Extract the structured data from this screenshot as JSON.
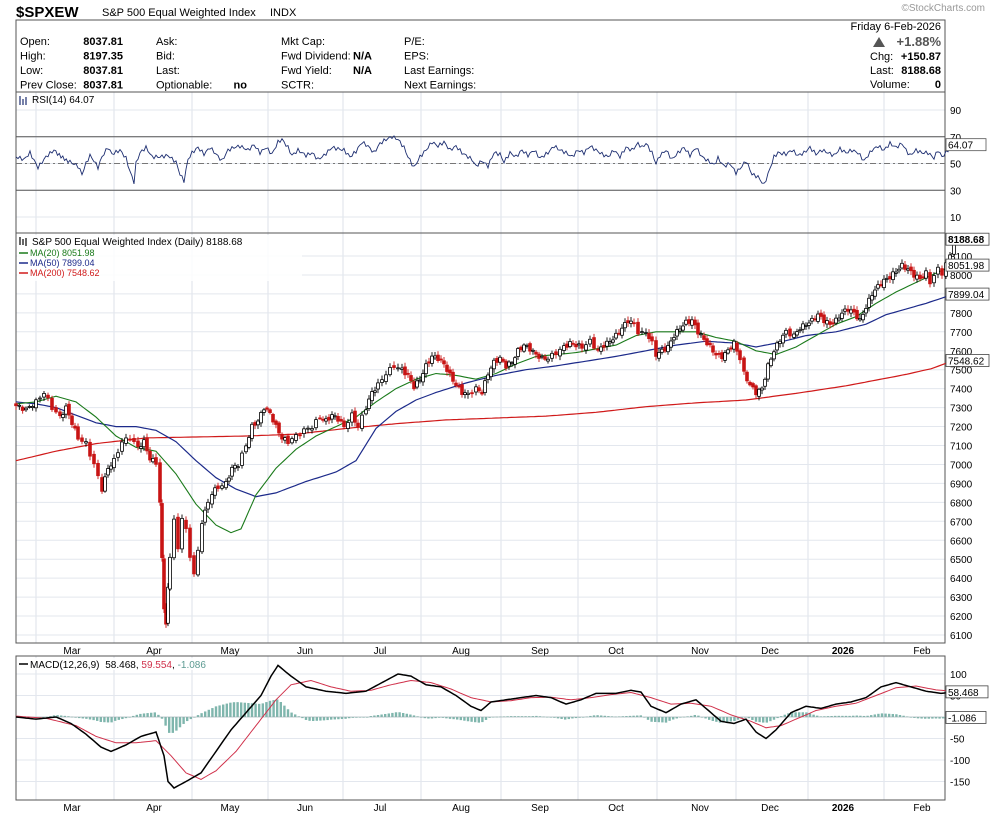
{
  "header": {
    "symbol": "$SPXEW",
    "name": "S&P 500 Equal Weighted Index",
    "exchange": "INDX",
    "date": "Friday  6-Feb-2026",
    "change_pct": "+1.88%",
    "change_label": "Chg:",
    "change_value": "+150.87",
    "last_label": "Last:",
    "last_value": "8188.68",
    "volume_label": "Volume:",
    "volume_value": "0",
    "watermark": "©StockCharts.com"
  },
  "quote": {
    "col1": [
      {
        "label": "Open:",
        "value": "8037.81"
      },
      {
        "label": "High:",
        "value": "8197.35"
      },
      {
        "label": "Low:",
        "value": "8037.81"
      },
      {
        "label": "Prev Close:",
        "value": "8037.81"
      }
    ],
    "col2": [
      {
        "label": "Ask:",
        "value": ""
      },
      {
        "label": "Bid:",
        "value": ""
      },
      {
        "label": "Last:",
        "value": ""
      },
      {
        "label": "Optionable:",
        "value": "no"
      }
    ],
    "col3": [
      {
        "label": "Mkt Cap:",
        "value": ""
      },
      {
        "label": "Fwd Dividend:",
        "value": "N/A"
      },
      {
        "label": "Fwd Yield:",
        "value": "N/A"
      },
      {
        "label": "SCTR:",
        "value": ""
      }
    ],
    "col4": [
      {
        "label": "P/E:",
        "value": ""
      },
      {
        "label": "EPS:",
        "value": ""
      },
      {
        "label": "Last Earnings:",
        "value": ""
      },
      {
        "label": "Next Earnings:",
        "value": ""
      }
    ]
  },
  "rsi": {
    "legend": "RSI(14) 64.07",
    "current_label": "64.07",
    "current": 64.07,
    "ticks": [
      "90",
      "70",
      "50",
      "30",
      "10"
    ],
    "overbought": 70,
    "oversold": 30,
    "color": "#1c2d70",
    "anchors": [
      [
        0,
        55
      ],
      [
        8,
        53
      ],
      [
        14,
        58
      ],
      [
        22,
        47
      ],
      [
        30,
        55
      ],
      [
        38,
        60
      ],
      [
        45,
        55
      ],
      [
        52,
        52
      ],
      [
        62,
        48
      ],
      [
        66,
        42
      ],
      [
        70,
        50
      ],
      [
        74,
        56
      ],
      [
        78,
        52
      ],
      [
        82,
        47
      ],
      [
        86,
        55
      ],
      [
        92,
        62
      ],
      [
        96,
        57
      ],
      [
        104,
        60
      ],
      [
        110,
        54
      ],
      [
        114,
        44
      ],
      [
        118,
        36
      ],
      [
        120,
        50
      ],
      [
        124,
        58
      ],
      [
        130,
        62
      ],
      [
        136,
        55
      ],
      [
        144,
        55
      ],
      [
        152,
        56
      ],
      [
        160,
        51
      ],
      [
        164,
        42
      ],
      [
        168,
        37
      ],
      [
        172,
        53
      ],
      [
        176,
        58
      ],
      [
        182,
        62
      ],
      [
        188,
        57
      ],
      [
        194,
        62
      ],
      [
        200,
        57
      ],
      [
        206,
        52
      ],
      [
        212,
        60
      ],
      [
        218,
        62
      ],
      [
        224,
        63
      ],
      [
        232,
        60
      ],
      [
        238,
        64
      ],
      [
        244,
        58
      ],
      [
        250,
        62
      ],
      [
        256,
        57
      ],
      [
        262,
        66
      ],
      [
        266,
        68
      ],
      [
        272,
        62
      ],
      [
        276,
        56
      ],
      [
        282,
        60
      ],
      [
        290,
        56
      ],
      [
        296,
        58
      ],
      [
        302,
        53
      ],
      [
        308,
        56
      ],
      [
        316,
        62
      ],
      [
        322,
        61
      ],
      [
        328,
        60
      ],
      [
        334,
        55
      ],
      [
        340,
        59
      ],
      [
        346,
        66
      ],
      [
        352,
        63
      ],
      [
        358,
        58
      ],
      [
        364,
        65
      ],
      [
        370,
        68
      ],
      [
        376,
        70
      ],
      [
        382,
        68
      ],
      [
        388,
        62
      ],
      [
        392,
        55
      ],
      [
        398,
        47
      ],
      [
        404,
        55
      ],
      [
        410,
        60
      ],
      [
        416,
        66
      ],
      [
        422,
        63
      ],
      [
        428,
        66
      ],
      [
        434,
        60
      ],
      [
        440,
        63
      ],
      [
        446,
        58
      ],
      [
        452,
        55
      ],
      [
        456,
        53
      ],
      [
        460,
        48
      ],
      [
        466,
        52
      ],
      [
        472,
        48
      ],
      [
        478,
        58
      ],
      [
        484,
        57
      ],
      [
        488,
        51
      ],
      [
        494,
        58
      ],
      [
        500,
        55
      ],
      [
        506,
        60
      ],
      [
        512,
        56
      ],
      [
        518,
        60
      ],
      [
        524,
        54
      ],
      [
        532,
        58
      ],
      [
        538,
        63
      ],
      [
        544,
        60
      ],
      [
        550,
        58
      ],
      [
        556,
        55
      ],
      [
        562,
        60
      ],
      [
        568,
        58
      ],
      [
        574,
        63
      ],
      [
        580,
        60
      ],
      [
        586,
        57
      ],
      [
        592,
        55
      ],
      [
        598,
        60
      ],
      [
        604,
        55
      ],
      [
        610,
        62
      ],
      [
        616,
        60
      ],
      [
        622,
        65
      ],
      [
        626,
        62
      ],
      [
        630,
        65
      ],
      [
        636,
        58
      ],
      [
        640,
        50
      ],
      [
        644,
        56
      ],
      [
        650,
        60
      ],
      [
        656,
        53
      ],
      [
        662,
        58
      ],
      [
        668,
        62
      ],
      [
        674,
        56
      ],
      [
        680,
        62
      ],
      [
        686,
        55
      ],
      [
        692,
        52
      ],
      [
        698,
        49
      ],
      [
        702,
        54
      ],
      [
        708,
        48
      ],
      [
        714,
        50
      ],
      [
        720,
        43
      ],
      [
        726,
        48
      ],
      [
        730,
        52
      ],
      [
        736,
        42
      ],
      [
        742,
        40
      ],
      [
        748,
        34
      ],
      [
        752,
        42
      ],
      [
        758,
        55
      ],
      [
        762,
        58
      ],
      [
        770,
        57
      ],
      [
        776,
        60
      ],
      [
        782,
        56
      ],
      [
        788,
        58
      ],
      [
        794,
        62
      ],
      [
        800,
        57
      ],
      [
        806,
        60
      ],
      [
        812,
        58
      ],
      [
        818,
        56
      ],
      [
        824,
        61
      ],
      [
        830,
        58
      ],
      [
        836,
        60
      ],
      [
        842,
        58
      ],
      [
        848,
        52
      ],
      [
        852,
        56
      ],
      [
        856,
        60
      ],
      [
        862,
        63
      ],
      [
        868,
        60
      ],
      [
        874,
        65
      ],
      [
        880,
        62
      ],
      [
        886,
        65
      ],
      [
        890,
        60
      ],
      [
        894,
        56
      ],
      [
        900,
        60
      ],
      [
        906,
        58
      ],
      [
        912,
        58
      ],
      [
        918,
        54
      ],
      [
        922,
        60
      ],
      [
        926,
        55
      ],
      [
        930,
        58
      ],
      [
        934,
        62
      ],
      [
        938,
        64.07
      ]
    ]
  },
  "price": {
    "legend": "S&P 500 Equal Weighted Index (Daily) 8188.68",
    "ma20_label": "MA(20) 8051.98",
    "ma50_label": "MA(50) 7899.04",
    "ma200_label": "MA(200) 7548.62",
    "last_tag": "8188.68",
    "ma20_tag": "8051.98",
    "ma50_tag": "7899.04",
    "ma200_tag": "7548.62",
    "ticks": [
      "8100",
      "8000",
      "7900",
      "7800",
      "7700",
      "7600",
      "7500",
      "7400",
      "7300",
      "7200",
      "7100",
      "7000",
      "6900",
      "6800",
      "6700",
      "6600",
      "6500",
      "6400",
      "6300",
      "6200",
      "6100"
    ],
    "colors": {
      "ma20": "#1a7a1a",
      "ma50": "#1c2a8a",
      "ma200": "#d01a1a",
      "up": "#000000",
      "down": "#c81414"
    }
  },
  "macd": {
    "legend_prefix": "MACD(12,26,9)",
    "macd_value": "58.468",
    "signal_value": "59.554",
    "hist_value": "-1.086",
    "macd_tag": "58.468",
    "hist_tag": "-1.086",
    "ticks": [
      "100",
      "50",
      "0",
      "-50",
      "-100",
      "-150"
    ],
    "colors": {
      "macd": "#000000",
      "signal": "#d0304a",
      "hist": "#7fb6ad"
    }
  },
  "axis": {
    "months": [
      "Mar",
      "Apr",
      "May",
      "Jun",
      "Jul",
      "Aug",
      "Sep",
      "Oct",
      "Nov",
      "Dec",
      "2026",
      "Feb"
    ]
  },
  "chart_data": {
    "type": "line",
    "title": "$SPXEW S&P 500 Equal Weighted Index INDX",
    "x_range": [
      "Feb 2025",
      "6-Feb-2026"
    ],
    "y_range_price": [
      6100,
      8200
    ],
    "series": [
      {
        "name": "S&P 500 Equal Weighted Index (Daily)",
        "points": [
          [
            "Feb",
            7310
          ],
          [
            "Mar",
            7380
          ],
          [
            "mid-Mar",
            6830
          ],
          [
            "Apr",
            7150
          ],
          [
            "Apr (low)",
            6100
          ],
          [
            "May",
            6910
          ],
          [
            "Jun",
            7200
          ],
          [
            "Jul",
            7480
          ],
          [
            "Aug",
            7380
          ],
          [
            "Sep",
            7640
          ],
          [
            "Oct",
            7790
          ],
          [
            "Nov",
            7560
          ],
          [
            "late Nov",
            7350
          ],
          [
            "Dec",
            7700
          ],
          [
            "Jan",
            7900
          ],
          [
            "2026",
            8050
          ],
          [
            "Feb",
            8188.68
          ]
        ]
      },
      {
        "name": "MA(20)",
        "points": [
          [
            "Mar",
            7330
          ],
          [
            "Apr",
            7050
          ],
          [
            "early May",
            6640
          ],
          [
            "Jun",
            7150
          ],
          [
            "Jul",
            7460
          ],
          [
            "Sep",
            7560
          ],
          [
            "Oct",
            7700
          ],
          [
            "Nov",
            7660
          ],
          [
            "Dec",
            7640
          ],
          [
            "2026",
            7980
          ],
          [
            "Feb",
            8051.98
          ]
        ]
      },
      {
        "name": "MA(50)",
        "points": [
          [
            "Feb",
            7320
          ],
          [
            "Apr",
            7200
          ],
          [
            "May",
            6820
          ],
          [
            "Jun",
            7050
          ],
          [
            "Jul",
            7250
          ],
          [
            "Aug",
            7420
          ],
          [
            "Sep",
            7520
          ],
          [
            "Oct",
            7610
          ],
          [
            "Nov",
            7660
          ],
          [
            "Dec",
            7700
          ],
          [
            "2026",
            7800
          ],
          [
            "Feb",
            7899.04
          ]
        ]
      },
      {
        "name": "MA(200)",
        "points": [
          [
            "Feb",
            7020
          ],
          [
            "Apr",
            7140
          ],
          [
            "Jun",
            7170
          ],
          [
            "Aug",
            7240
          ],
          [
            "Oct",
            7310
          ],
          [
            "Dec",
            7380
          ],
          [
            "2026",
            7470
          ],
          [
            "Feb",
            7548.62
          ]
        ]
      }
    ],
    "rsi_last": 64.07,
    "macd": {
      "macd": 58.468,
      "signal": 59.554,
      "histogram": -1.086
    }
  }
}
